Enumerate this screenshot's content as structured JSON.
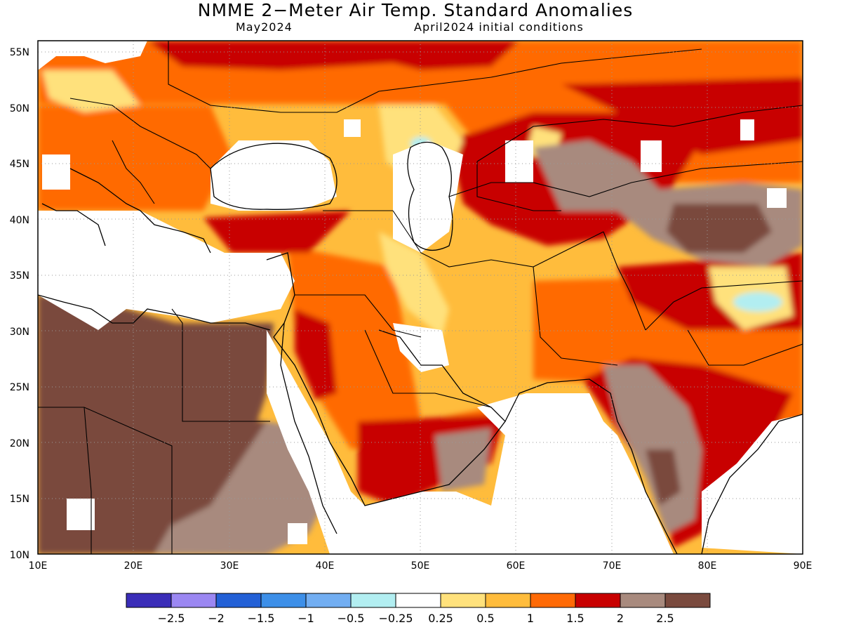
{
  "title": "NMME 2−Meter Air Temp. Standard Anomalies",
  "subtitle_month": "May2024",
  "subtitle_ic": "April2024 initial conditions",
  "map": {
    "lon_range": [
      10,
      90
    ],
    "lat_range": [
      10,
      56
    ],
    "lon_ticks": [
      "10E",
      "20E",
      "30E",
      "40E",
      "50E",
      "60E",
      "70E",
      "80E",
      "90E"
    ],
    "lat_ticks": [
      "10N",
      "15N",
      "20N",
      "25N",
      "30N",
      "35N",
      "40N",
      "45N",
      "50N",
      "55N"
    ],
    "grid_lines": "dotted"
  },
  "colorbar": {
    "colors": [
      "#3a2db8",
      "#9b87f2",
      "#2360d6",
      "#3d8fe8",
      "#72aef2",
      "#b2eef1",
      "#ffffff",
      "#ffe17c",
      "#ffbc3c",
      "#ff6a06",
      "#c80000",
      "#a88a7e",
      "#7a4a3e"
    ],
    "labels": [
      "−2.5",
      "−2",
      "−1.5",
      "−1",
      "−0.5",
      "−0.25",
      "0.25",
      "0.5",
      "1",
      "1.5",
      "2",
      "2.5"
    ]
  }
}
